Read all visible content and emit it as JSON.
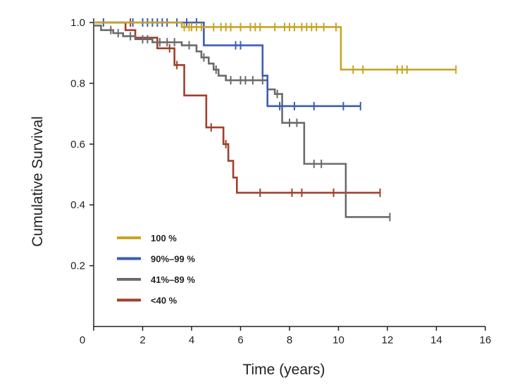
{
  "chart_data": {
    "type": "line",
    "step": true,
    "xlabel": "Time (years)",
    "ylabel": "Cumulative Survival",
    "xlim": [
      0,
      16
    ],
    "ylim": [
      0,
      1.0
    ],
    "x_ticks": [
      "0",
      "2",
      "4",
      "6",
      "8",
      "10",
      "12",
      "14",
      "16"
    ],
    "y_ticks": [
      "0.2",
      "0.4",
      "0.6",
      "0.8",
      "1.0"
    ],
    "grid": false,
    "legend_position": "bottom-left",
    "series": [
      {
        "name": "100 %",
        "color": "#c8a424",
        "steps": [
          [
            0,
            1.0
          ],
          [
            3.6,
            0.985
          ],
          [
            10.1,
            0.845
          ],
          [
            14.8,
            0.845
          ]
        ],
        "censored": [
          [
            3.7,
            0.985
          ],
          [
            3.9,
            0.985
          ],
          [
            4.0,
            0.985
          ],
          [
            4.2,
            0.985
          ],
          [
            4.4,
            0.985
          ],
          [
            4.9,
            0.985
          ],
          [
            5.2,
            0.985
          ],
          [
            5.4,
            0.985
          ],
          [
            5.6,
            0.985
          ],
          [
            6.0,
            0.985
          ],
          [
            6.4,
            0.985
          ],
          [
            6.6,
            0.985
          ],
          [
            6.8,
            0.985
          ],
          [
            7.4,
            0.985
          ],
          [
            7.8,
            0.985
          ],
          [
            8.0,
            0.985
          ],
          [
            8.2,
            0.985
          ],
          [
            8.5,
            0.985
          ],
          [
            8.7,
            0.985
          ],
          [
            8.9,
            0.985
          ],
          [
            9.1,
            0.985
          ],
          [
            9.4,
            0.985
          ],
          [
            9.9,
            0.985
          ],
          [
            10.6,
            0.845
          ],
          [
            11.0,
            0.845
          ],
          [
            12.4,
            0.845
          ],
          [
            12.6,
            0.845
          ],
          [
            12.8,
            0.845
          ],
          [
            14.8,
            0.845
          ]
        ]
      },
      {
        "name": "90%–99 %",
        "color": "#3a5db5",
        "steps": [
          [
            0,
            1.0
          ],
          [
            4.5,
            0.925
          ],
          [
            6.9,
            0.825
          ],
          [
            7.1,
            0.725
          ],
          [
            10.9,
            0.725
          ]
        ],
        "censored": [
          [
            0.4,
            1.0
          ],
          [
            1.6,
            1.0
          ],
          [
            2.0,
            1.0
          ],
          [
            2.2,
            1.0
          ],
          [
            2.4,
            1.0
          ],
          [
            2.6,
            1.0
          ],
          [
            2.8,
            1.0
          ],
          [
            3.0,
            1.0
          ],
          [
            3.4,
            1.0
          ],
          [
            3.8,
            1.0
          ],
          [
            4.2,
            1.0
          ],
          [
            5.8,
            0.925
          ],
          [
            6.0,
            0.925
          ],
          [
            7.6,
            0.725
          ],
          [
            8.2,
            0.725
          ],
          [
            9.0,
            0.725
          ],
          [
            10.2,
            0.725
          ],
          [
            10.9,
            0.725
          ]
        ]
      },
      {
        "name": "41%–89 %",
        "color": "#6b6b6b",
        "steps": [
          [
            0,
            0.99
          ],
          [
            0.3,
            0.975
          ],
          [
            0.8,
            0.965
          ],
          [
            1.2,
            0.955
          ],
          [
            1.7,
            0.945
          ],
          [
            2.4,
            0.935
          ],
          [
            3.6,
            0.925
          ],
          [
            4.2,
            0.905
          ],
          [
            4.4,
            0.885
          ],
          [
            4.7,
            0.865
          ],
          [
            4.9,
            0.845
          ],
          [
            5.1,
            0.825
          ],
          [
            5.4,
            0.81
          ],
          [
            7.1,
            0.78
          ],
          [
            7.4,
            0.765
          ],
          [
            7.7,
            0.67
          ],
          [
            8.6,
            0.535
          ],
          [
            10.3,
            0.36
          ],
          [
            12.1,
            0.36
          ]
        ],
        "censored": [
          [
            0.7,
            0.975
          ],
          [
            1.0,
            0.965
          ],
          [
            1.5,
            0.955
          ],
          [
            2.0,
            0.945
          ],
          [
            2.2,
            0.945
          ],
          [
            2.7,
            0.935
          ],
          [
            3.0,
            0.935
          ],
          [
            3.3,
            0.935
          ],
          [
            3.9,
            0.925
          ],
          [
            4.5,
            0.885
          ],
          [
            5.0,
            0.845
          ],
          [
            5.6,
            0.81
          ],
          [
            6.0,
            0.81
          ],
          [
            6.2,
            0.81
          ],
          [
            6.5,
            0.81
          ],
          [
            6.9,
            0.81
          ],
          [
            7.5,
            0.765
          ],
          [
            8.0,
            0.67
          ],
          [
            8.3,
            0.67
          ],
          [
            9.0,
            0.535
          ],
          [
            9.3,
            0.535
          ],
          [
            12.1,
            0.36
          ]
        ]
      },
      {
        "name": "<40 %",
        "color": "#a0402c",
        "steps": [
          [
            0,
            1.0
          ],
          [
            1.3,
            0.975
          ],
          [
            1.7,
            0.95
          ],
          [
            2.6,
            0.915
          ],
          [
            3.3,
            0.86
          ],
          [
            3.7,
            0.76
          ],
          [
            4.6,
            0.655
          ],
          [
            5.3,
            0.6
          ],
          [
            5.5,
            0.545
          ],
          [
            5.7,
            0.49
          ],
          [
            5.85,
            0.44
          ],
          [
            11.7,
            0.44
          ]
        ],
        "censored": [
          [
            1.5,
            1.0
          ],
          [
            3.1,
            0.915
          ],
          [
            3.4,
            0.86
          ],
          [
            4.8,
            0.655
          ],
          [
            5.4,
            0.6
          ],
          [
            6.8,
            0.44
          ],
          [
            8.1,
            0.44
          ],
          [
            8.5,
            0.44
          ],
          [
            9.8,
            0.44
          ],
          [
            11.7,
            0.44
          ]
        ]
      }
    ]
  }
}
